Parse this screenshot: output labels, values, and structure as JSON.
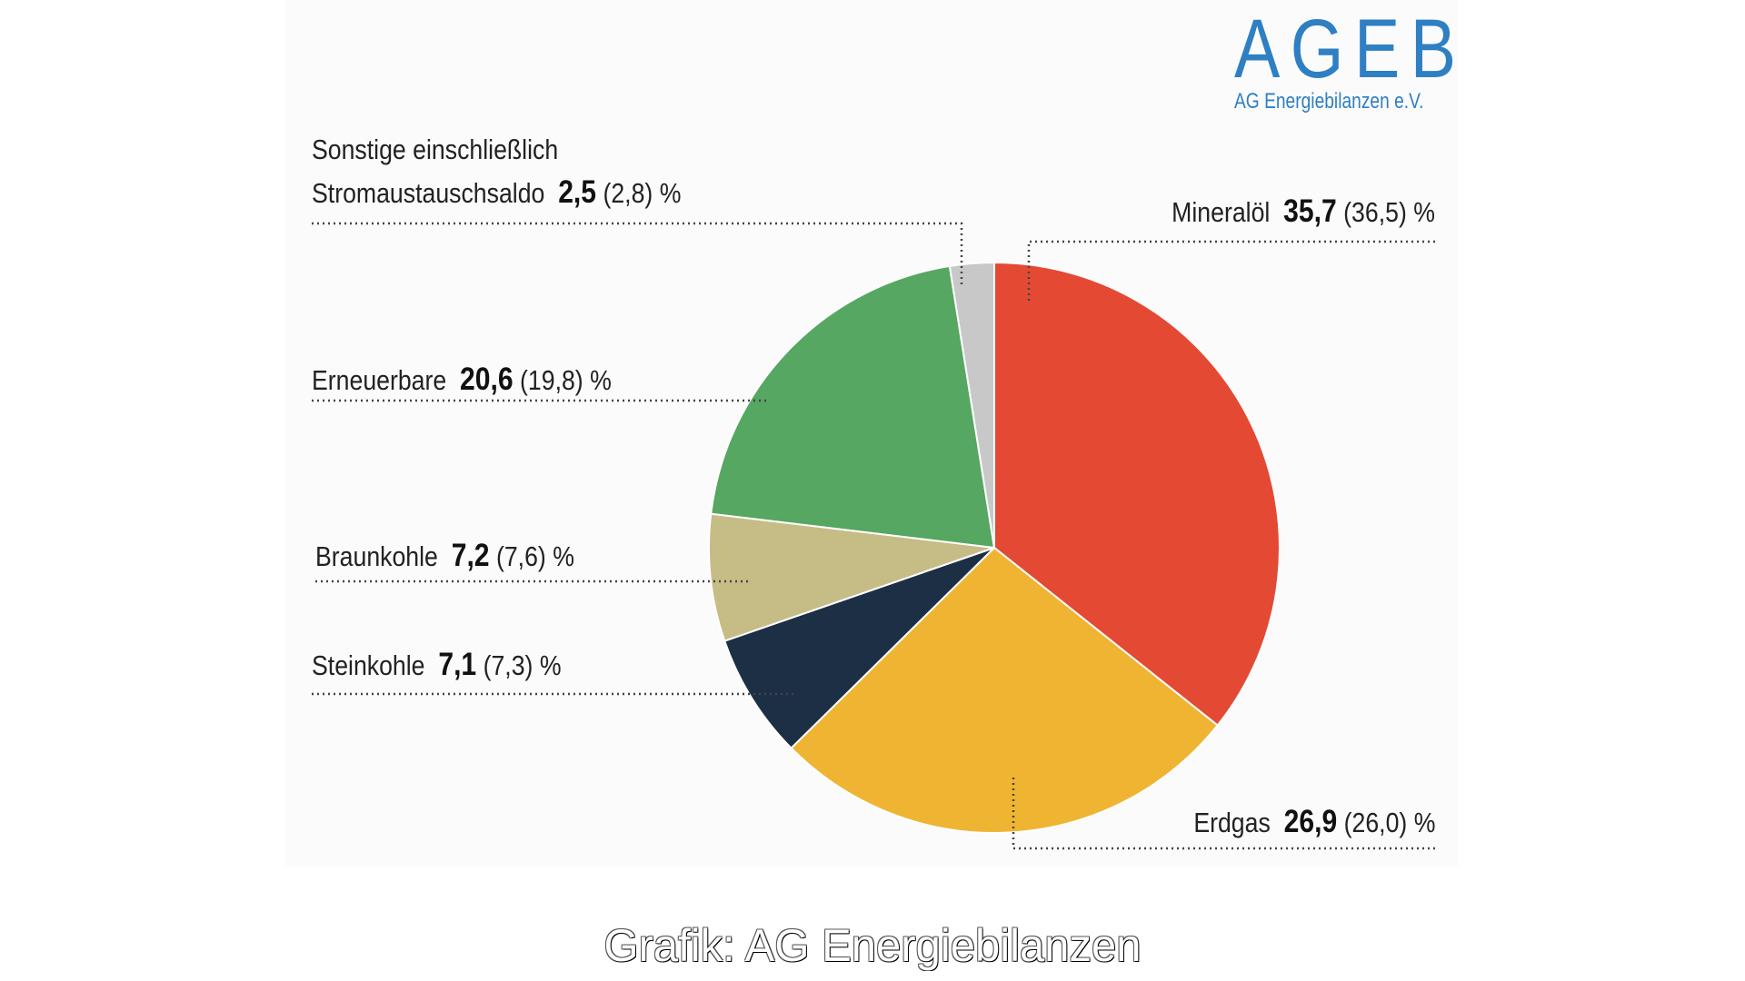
{
  "logo": {
    "text": "AGEB",
    "subtitle": "AG Energiebilanzen e.V."
  },
  "caption": "Grafik: AG Energiebilanzen",
  "chart_data": {
    "type": "pie",
    "unit": "%",
    "start": "top",
    "direction": "clockwise",
    "slices": [
      {
        "label": "Mineralöl",
        "value": 35.7,
        "value_text": "35,7",
        "prev_text": "(36,5)",
        "color": "#e44a33"
      },
      {
        "label": "Erdgas",
        "value": 26.9,
        "value_text": "26,9",
        "prev_text": "(26,0)",
        "color": "#f0b433"
      },
      {
        "label": "Steinkohle",
        "value": 7.1,
        "value_text": "7,1",
        "prev_text": "(7,3)",
        "color": "#1d2f45"
      },
      {
        "label": "Braunkohle",
        "value": 7.2,
        "value_text": "7,2",
        "prev_text": "(7,6)",
        "color": "#c6bd86"
      },
      {
        "label": "Erneuerbare",
        "value": 20.6,
        "value_text": "20,6",
        "prev_text": "(19,8)",
        "color": "#55a761"
      },
      {
        "label": "Sonstige einschließlich Stromaustauschsaldo",
        "label_line1": "Sonstige einschließlich",
        "label_line2": "Stromaustauschsaldo",
        "value": 2.5,
        "value_text": "2,5",
        "prev_text": "(2,8)",
        "color": "#c8c8c8"
      }
    ],
    "percent_sign": "%"
  }
}
